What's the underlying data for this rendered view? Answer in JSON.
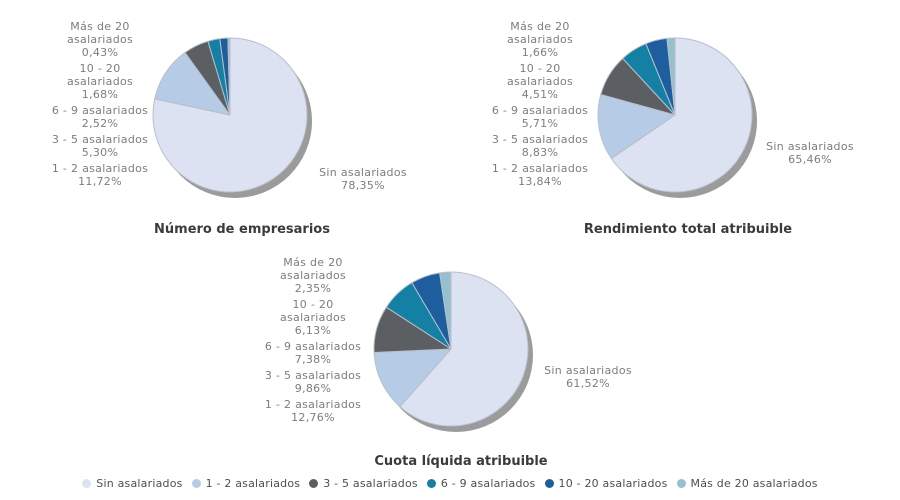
{
  "colors": {
    "series": [
      "#dce2f1",
      "#b6cbe5",
      "#5b5f64",
      "#1480a3",
      "#1f5e9e",
      "#95c1ce"
    ],
    "shadow": "#9b9b9b",
    "slice_stroke": "#b9bfca",
    "label_text": "#7d7d7d",
    "title_text": "#3b3b3b",
    "legend_text": "#4e4e4e",
    "background": "#ffffff"
  },
  "legend": {
    "position": "bottom",
    "items": [
      "Sin asalariados",
      "1 - 2 asalariados",
      "3 - 5 asalariados",
      "6 - 9 asalariados",
      "10 - 20 asalariados",
      "Más de 20 asalariados"
    ]
  },
  "chart_data": [
    {
      "type": "pie",
      "title": "Número de empresarios",
      "categories": [
        "Sin asalariados",
        "1 - 2 asalariados",
        "3 - 5 asalariados",
        "6 - 9 asalariados",
        "10 - 20 asalariados",
        "Más de 20 asalariados"
      ],
      "values": [
        78.35,
        11.72,
        5.3,
        2.52,
        1.68,
        0.43
      ],
      "value_labels": [
        "78,35%",
        "11,72%",
        "5,30%",
        "2,52%",
        "1,68%",
        "0,43%"
      ],
      "side_labels": [
        {
          "lines": [
            "Más de 20",
            "asalariados",
            "0,43%"
          ]
        },
        {
          "lines": [
            "10 - 20",
            "asalariados",
            "1,68%"
          ]
        },
        {
          "lines": [
            "6 - 9 asalariados",
            "2,52%"
          ]
        },
        {
          "lines": [
            "3 - 5 asalariados",
            "5,30%"
          ]
        },
        {
          "lines": [
            "1 - 2 asalariados",
            "11,72%"
          ]
        }
      ],
      "right_label": {
        "lines": [
          "Sin asalariados",
          "78,35%"
        ]
      }
    },
    {
      "type": "pie",
      "title": "Rendimiento total atribuible",
      "categories": [
        "Sin asalariados",
        "1 - 2 asalariados",
        "3 - 5 asalariados",
        "6 - 9 asalariados",
        "10 - 20 asalariados",
        "Más de 20 asalariados"
      ],
      "values": [
        65.46,
        13.84,
        8.83,
        5.71,
        4.51,
        1.66
      ],
      "value_labels": [
        "65,46%",
        "13,84%",
        "8,83%",
        "5,71%",
        "4,51%",
        "1,66%"
      ],
      "side_labels": [
        {
          "lines": [
            "Más de 20",
            "asalariados",
            "1,66%"
          ]
        },
        {
          "lines": [
            "10 - 20",
            "asalariados",
            "4,51%"
          ]
        },
        {
          "lines": [
            "6 - 9 asalariados",
            "5,71%"
          ]
        },
        {
          "lines": [
            "3 - 5 asalariados",
            "8,83%"
          ]
        },
        {
          "lines": [
            "1 - 2 asalariados",
            "13,84%"
          ]
        }
      ],
      "right_label": {
        "lines": [
          "Sin asalariados",
          "65,46%"
        ]
      }
    },
    {
      "type": "pie",
      "title": "Cuota líquida atribuible",
      "categories": [
        "Sin asalariados",
        "1 - 2 asalariados",
        "3 - 5 asalariados",
        "6 - 9 asalariados",
        "10 - 20 asalariados",
        "Más de 20 asalariados"
      ],
      "values": [
        61.52,
        12.76,
        9.86,
        7.38,
        6.13,
        2.35
      ],
      "value_labels": [
        "61,52%",
        "12,76%",
        "9,86%",
        "7,38%",
        "6,13%",
        "2,35%"
      ],
      "side_labels": [
        {
          "lines": [
            "Más de 20",
            "asalariados",
            "2,35%"
          ]
        },
        {
          "lines": [
            "10 - 20",
            "asalariados",
            "6,13%"
          ]
        },
        {
          "lines": [
            "6 - 9 asalariados",
            "7,38%"
          ]
        },
        {
          "lines": [
            "3 - 5 asalariados",
            "9,86%"
          ]
        },
        {
          "lines": [
            "1 - 2 asalariados",
            "12,76%"
          ]
        }
      ],
      "right_label": {
        "lines": [
          "Sin asalariados",
          "61,52%"
        ]
      }
    }
  ]
}
